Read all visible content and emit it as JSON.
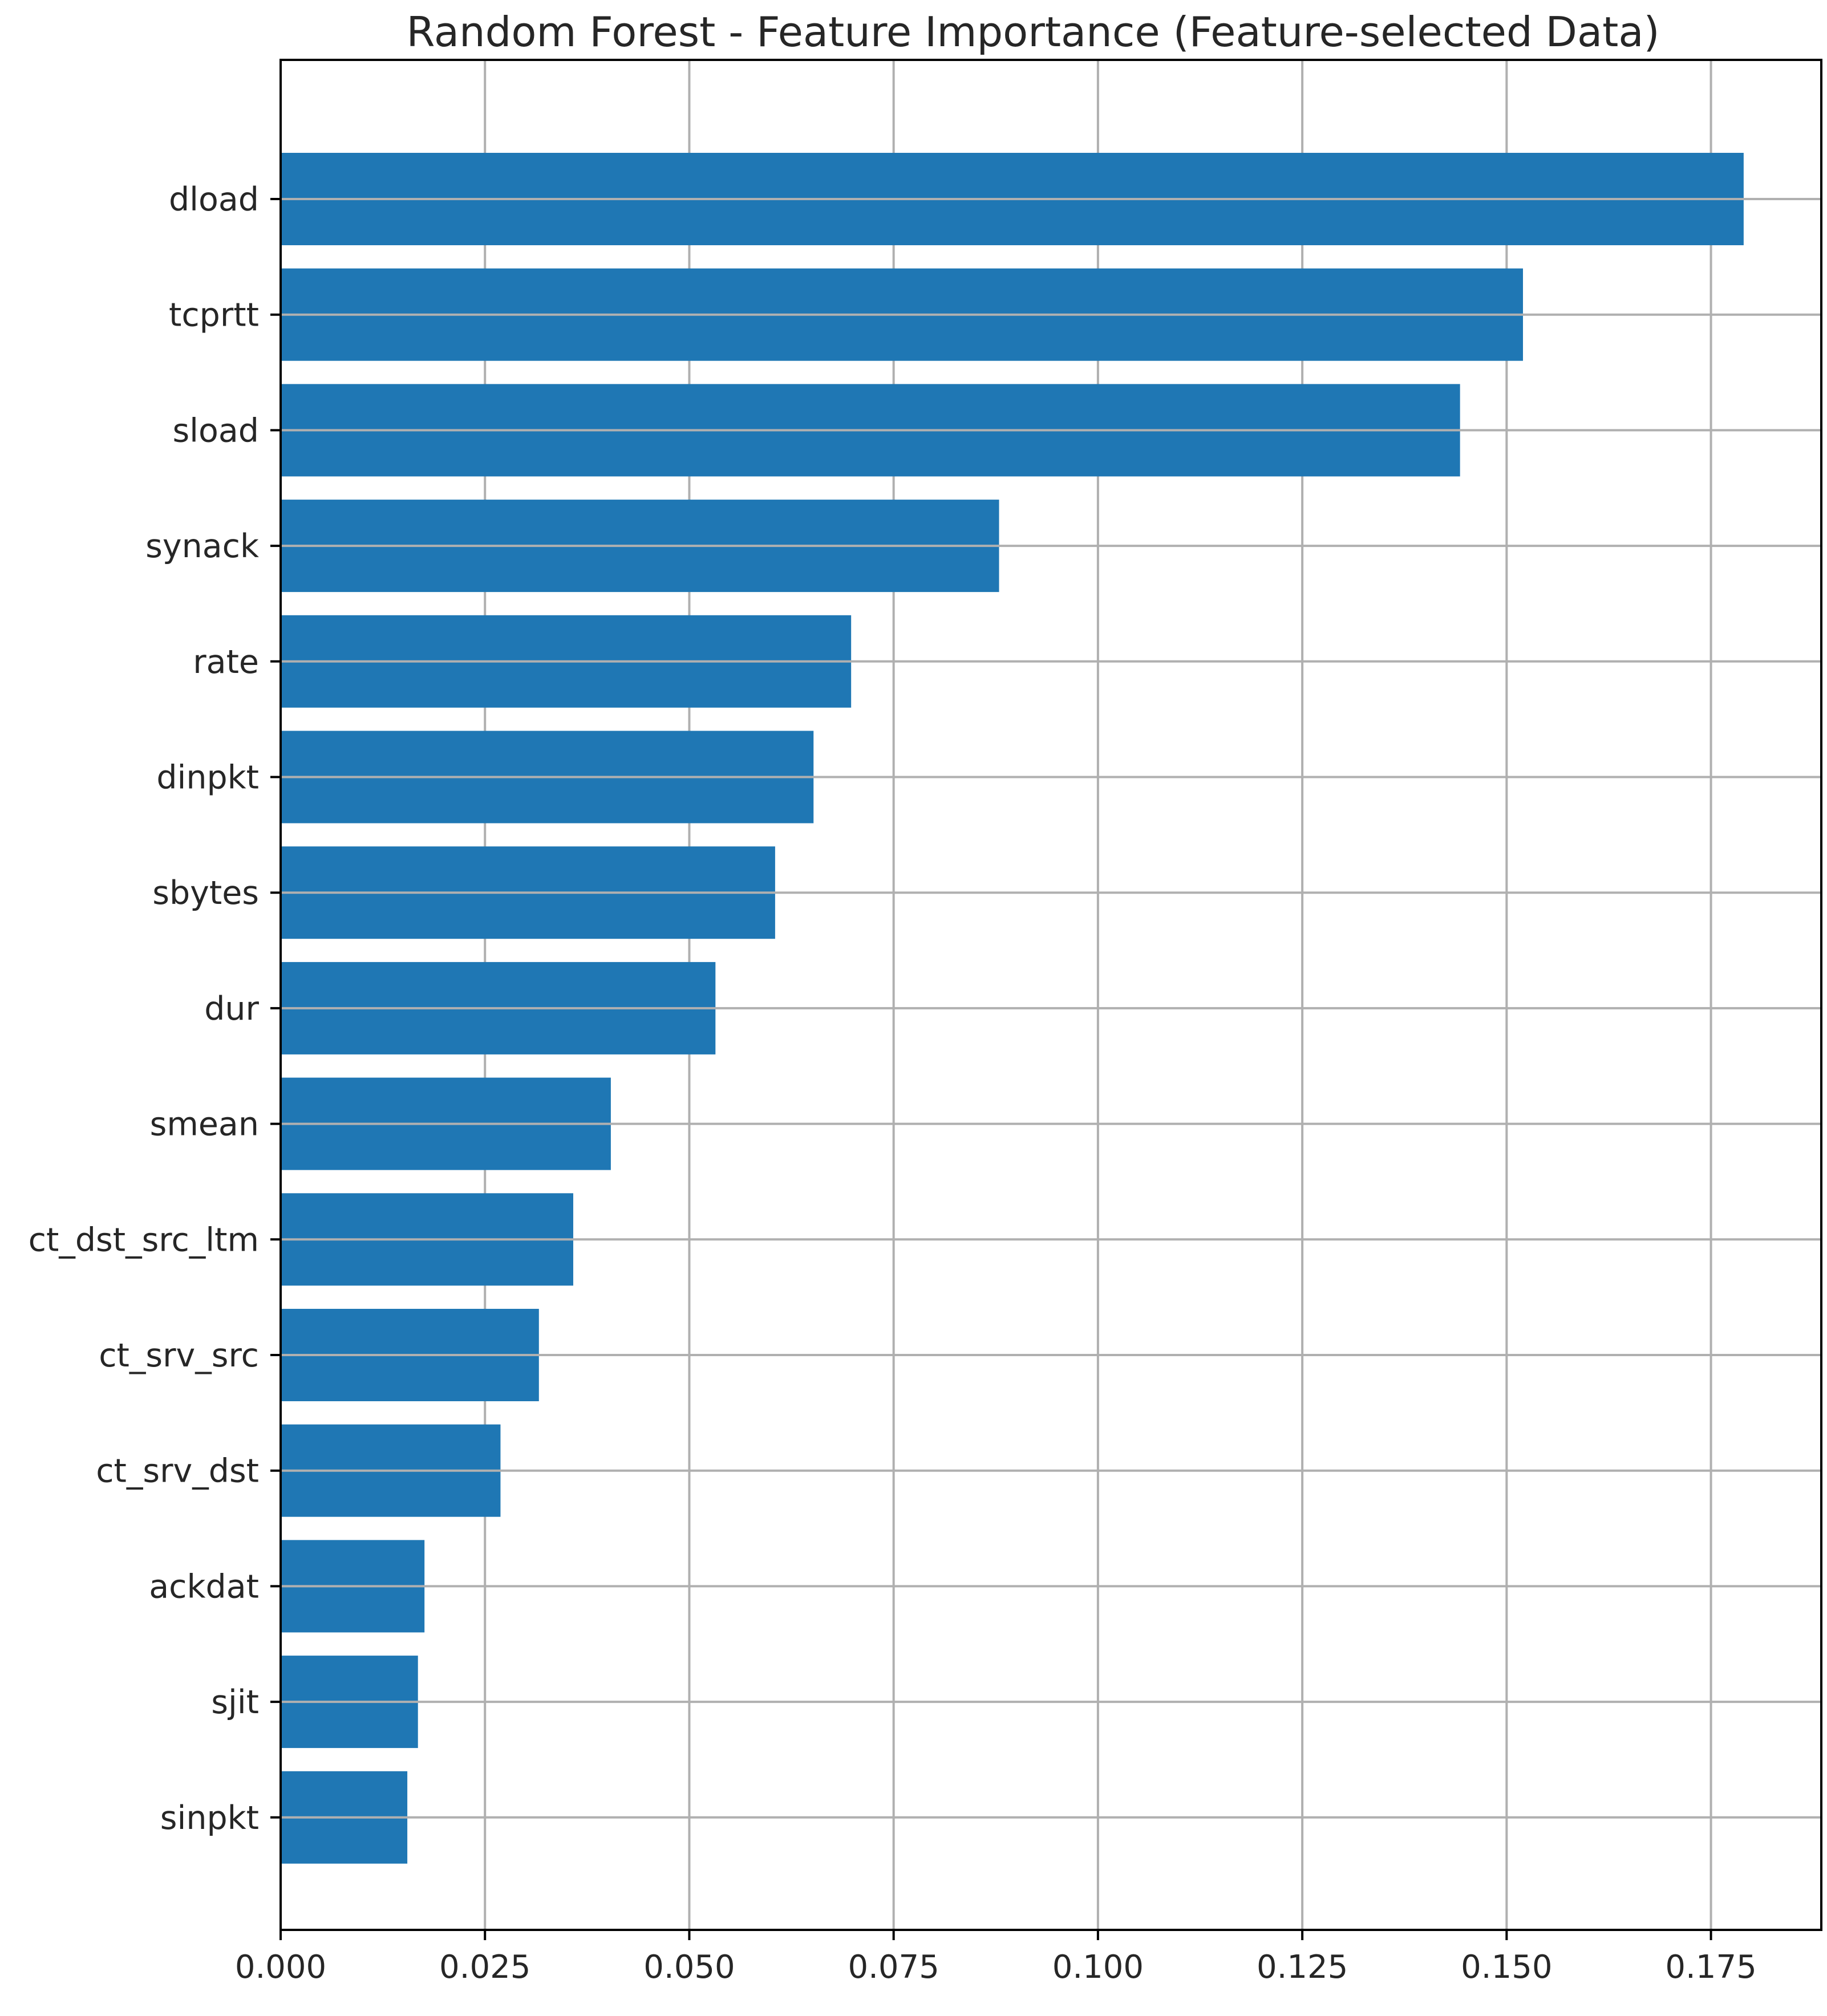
{
  "chart_data": {
    "type": "bar",
    "orientation": "horizontal",
    "title": "Random Forest - Feature Importance (Feature-selected Data)",
    "xlabel": "",
    "ylabel": "",
    "categories": [
      "dload",
      "tcprtt",
      "sload",
      "synack",
      "rate",
      "dinpkt",
      "sbytes",
      "dur",
      "smean",
      "ct_dst_src_ltm",
      "ct_srv_src",
      "ct_srv_dst",
      "ackdat",
      "sjit",
      "sinpkt"
    ],
    "values": [
      0.179,
      0.152,
      0.1443,
      0.0879,
      0.0698,
      0.0652,
      0.0605,
      0.0532,
      0.0404,
      0.0358,
      0.0316,
      0.0269,
      0.0176,
      0.0168,
      0.0155
    ],
    "xlim": [
      0,
      0.1885
    ],
    "xticks": [
      "0.000",
      "0.025",
      "0.050",
      "0.075",
      "0.100",
      "0.125",
      "0.150",
      "0.175"
    ],
    "grid": true,
    "bar_color": "#1f77b4"
  }
}
